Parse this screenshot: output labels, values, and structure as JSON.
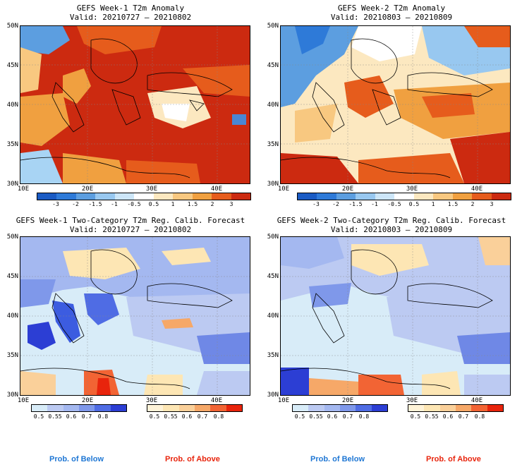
{
  "colors": {
    "below": "#1f77d4",
    "above": "#e8240c"
  },
  "panels": [
    {
      "title": "GEFS Week-1 T2m Anomaly",
      "valid": "Valid: 20210727 – 20210802",
      "lat_labels": [
        "50N",
        "45N",
        "40N",
        "35N",
        "30N"
      ],
      "lon_labels": [
        "10E",
        "20E",
        "30E",
        "40E"
      ],
      "colorbar_labels": [
        "-3",
        "-2",
        "-1.5",
        "-1",
        "-0.5",
        "0.5",
        "1",
        "1.5",
        "2",
        "3"
      ]
    },
    {
      "title": "GEFS Week-2 T2m Anomaly",
      "valid": "Valid: 20210803 – 20210809",
      "lat_labels": [
        "50N",
        "45N",
        "40N",
        "35N",
        "30N"
      ],
      "lon_labels": [
        "10E",
        "20E",
        "30E",
        "40E"
      ],
      "colorbar_labels": [
        "-3",
        "-2",
        "-1.5",
        "-1",
        "-0.5",
        "0.5",
        "1",
        "1.5",
        "2",
        "3"
      ]
    },
    {
      "title": "GEFS Week-1 Two-Category T2m Reg. Calib. Forecast",
      "valid": "Valid: 20210727 – 20210802",
      "lat_labels": [
        "50N",
        "45N",
        "40N",
        "35N",
        "30N"
      ],
      "lon_labels": [
        "10E",
        "20E",
        "30E",
        "40E"
      ],
      "below_labels": [
        "0.5",
        "0.55",
        "0.6",
        "0.7",
        "0.8"
      ],
      "above_labels": [
        "0.5",
        "0.55",
        "0.6",
        "0.7",
        "0.8"
      ]
    },
    {
      "title": "GEFS Week-2 Two-Category T2m Reg. Calib. Forecast",
      "valid": "Valid: 20210803 – 20210809",
      "lat_labels": [
        "50N",
        "45N",
        "40N",
        "35N",
        "30N"
      ],
      "lon_labels": [
        "10E",
        "20E",
        "30E",
        "40E"
      ],
      "below_labels": [
        "0.5",
        "0.55",
        "0.6",
        "0.7",
        "0.8"
      ],
      "above_labels": [
        "0.5",
        "0.55",
        "0.6",
        "0.7",
        "0.8"
      ]
    }
  ],
  "footer": {
    "below": "Prob. of Below",
    "above": "Prob. of Above"
  }
}
